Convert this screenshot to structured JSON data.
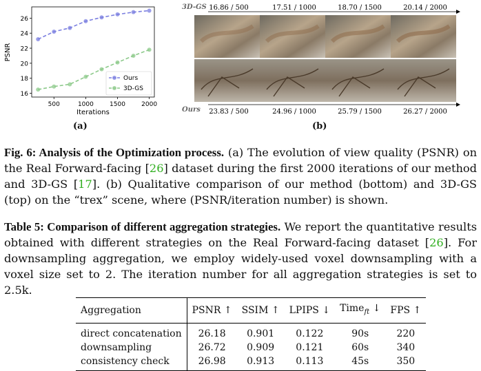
{
  "figure": {
    "panel_a_label": "(a)",
    "panel_b_label": "(b)",
    "chart_data": {
      "type": "line",
      "xlabel": "Iterations",
      "ylabel": "PSNR",
      "xlim": [
        150,
        2080
      ],
      "ylim": [
        15.5,
        27.5
      ],
      "xticks": [
        500,
        1000,
        1500,
        2000
      ],
      "yticks": [
        16,
        18,
        20,
        22,
        24,
        26
      ],
      "grid": false,
      "legend_position": "bottom-right",
      "x": [
        250,
        500,
        750,
        1000,
        1250,
        1500,
        1750,
        2000
      ],
      "series": [
        {
          "name": "Ours",
          "color": "#7b7fe0",
          "values": [
            23.2,
            24.2,
            24.7,
            25.6,
            26.1,
            26.5,
            26.8,
            27.0
          ]
        },
        {
          "name": "3D-GS",
          "color": "#8cc98a",
          "values": [
            16.5,
            16.9,
            17.2,
            18.2,
            19.2,
            20.1,
            21.0,
            21.8
          ]
        }
      ]
    },
    "panel_b": {
      "top_method": "3D-GS",
      "bottom_method": "Ours",
      "top_labels": [
        "16.86 / 500",
        "17.51 / 1000",
        "18.70 / 1500",
        "20.14 / 2000"
      ],
      "bottom_labels": [
        "23.83 / 500",
        "24.96 / 1000",
        "25.79 / 1500",
        "26.27 / 2000"
      ]
    }
  },
  "caption": {
    "label": "Fig. 6: Analysis of the Optimization process.",
    "text1": " (a) The evolution of view quality (PSNR) on the Real Forward-facing [",
    "ref1": "26",
    "text2": "] dataset during the first 2000 iterations of our method and 3D-GS [",
    "ref2": "17",
    "text3": "]. (b) Qualitative comparison of our method (bottom) and 3D-GS (top) on the “trex” scene, where (PSNR/iteration number) is shown."
  },
  "table_caption": {
    "label": "Table 5: Comparison of different aggregation strategies.",
    "text1": " We report the quantitative results obtained with different strategies on the Real Forward-facing dataset [",
    "ref1": "26",
    "text2": "]. For downsampling aggregation, we employ widely-used voxel downsampling with a voxel size set to 2. The iteration number for all aggregation strategies is set to 2.5k."
  },
  "table": {
    "headers": {
      "aggregation": "Aggregation",
      "psnr": "PSNR ↑",
      "ssim": "SSIM ↑",
      "lpips": "LPIPS ↓",
      "time_main": "Time",
      "time_sub": "ft",
      "time_arrow": " ↓",
      "fps": "FPS ↑"
    },
    "rows": [
      {
        "aggregation": "direct concatenation",
        "psnr": "26.18",
        "ssim": "0.901",
        "lpips": "0.122",
        "time": "90s",
        "fps": "220"
      },
      {
        "aggregation": "downsampling",
        "psnr": "26.72",
        "ssim": "0.909",
        "lpips": "0.121",
        "time": "60s",
        "fps": "340"
      },
      {
        "aggregation": "consistency check",
        "psnr": "26.98",
        "ssim": "0.913",
        "lpips": "0.113",
        "time": "45s",
        "fps": "350"
      }
    ]
  }
}
